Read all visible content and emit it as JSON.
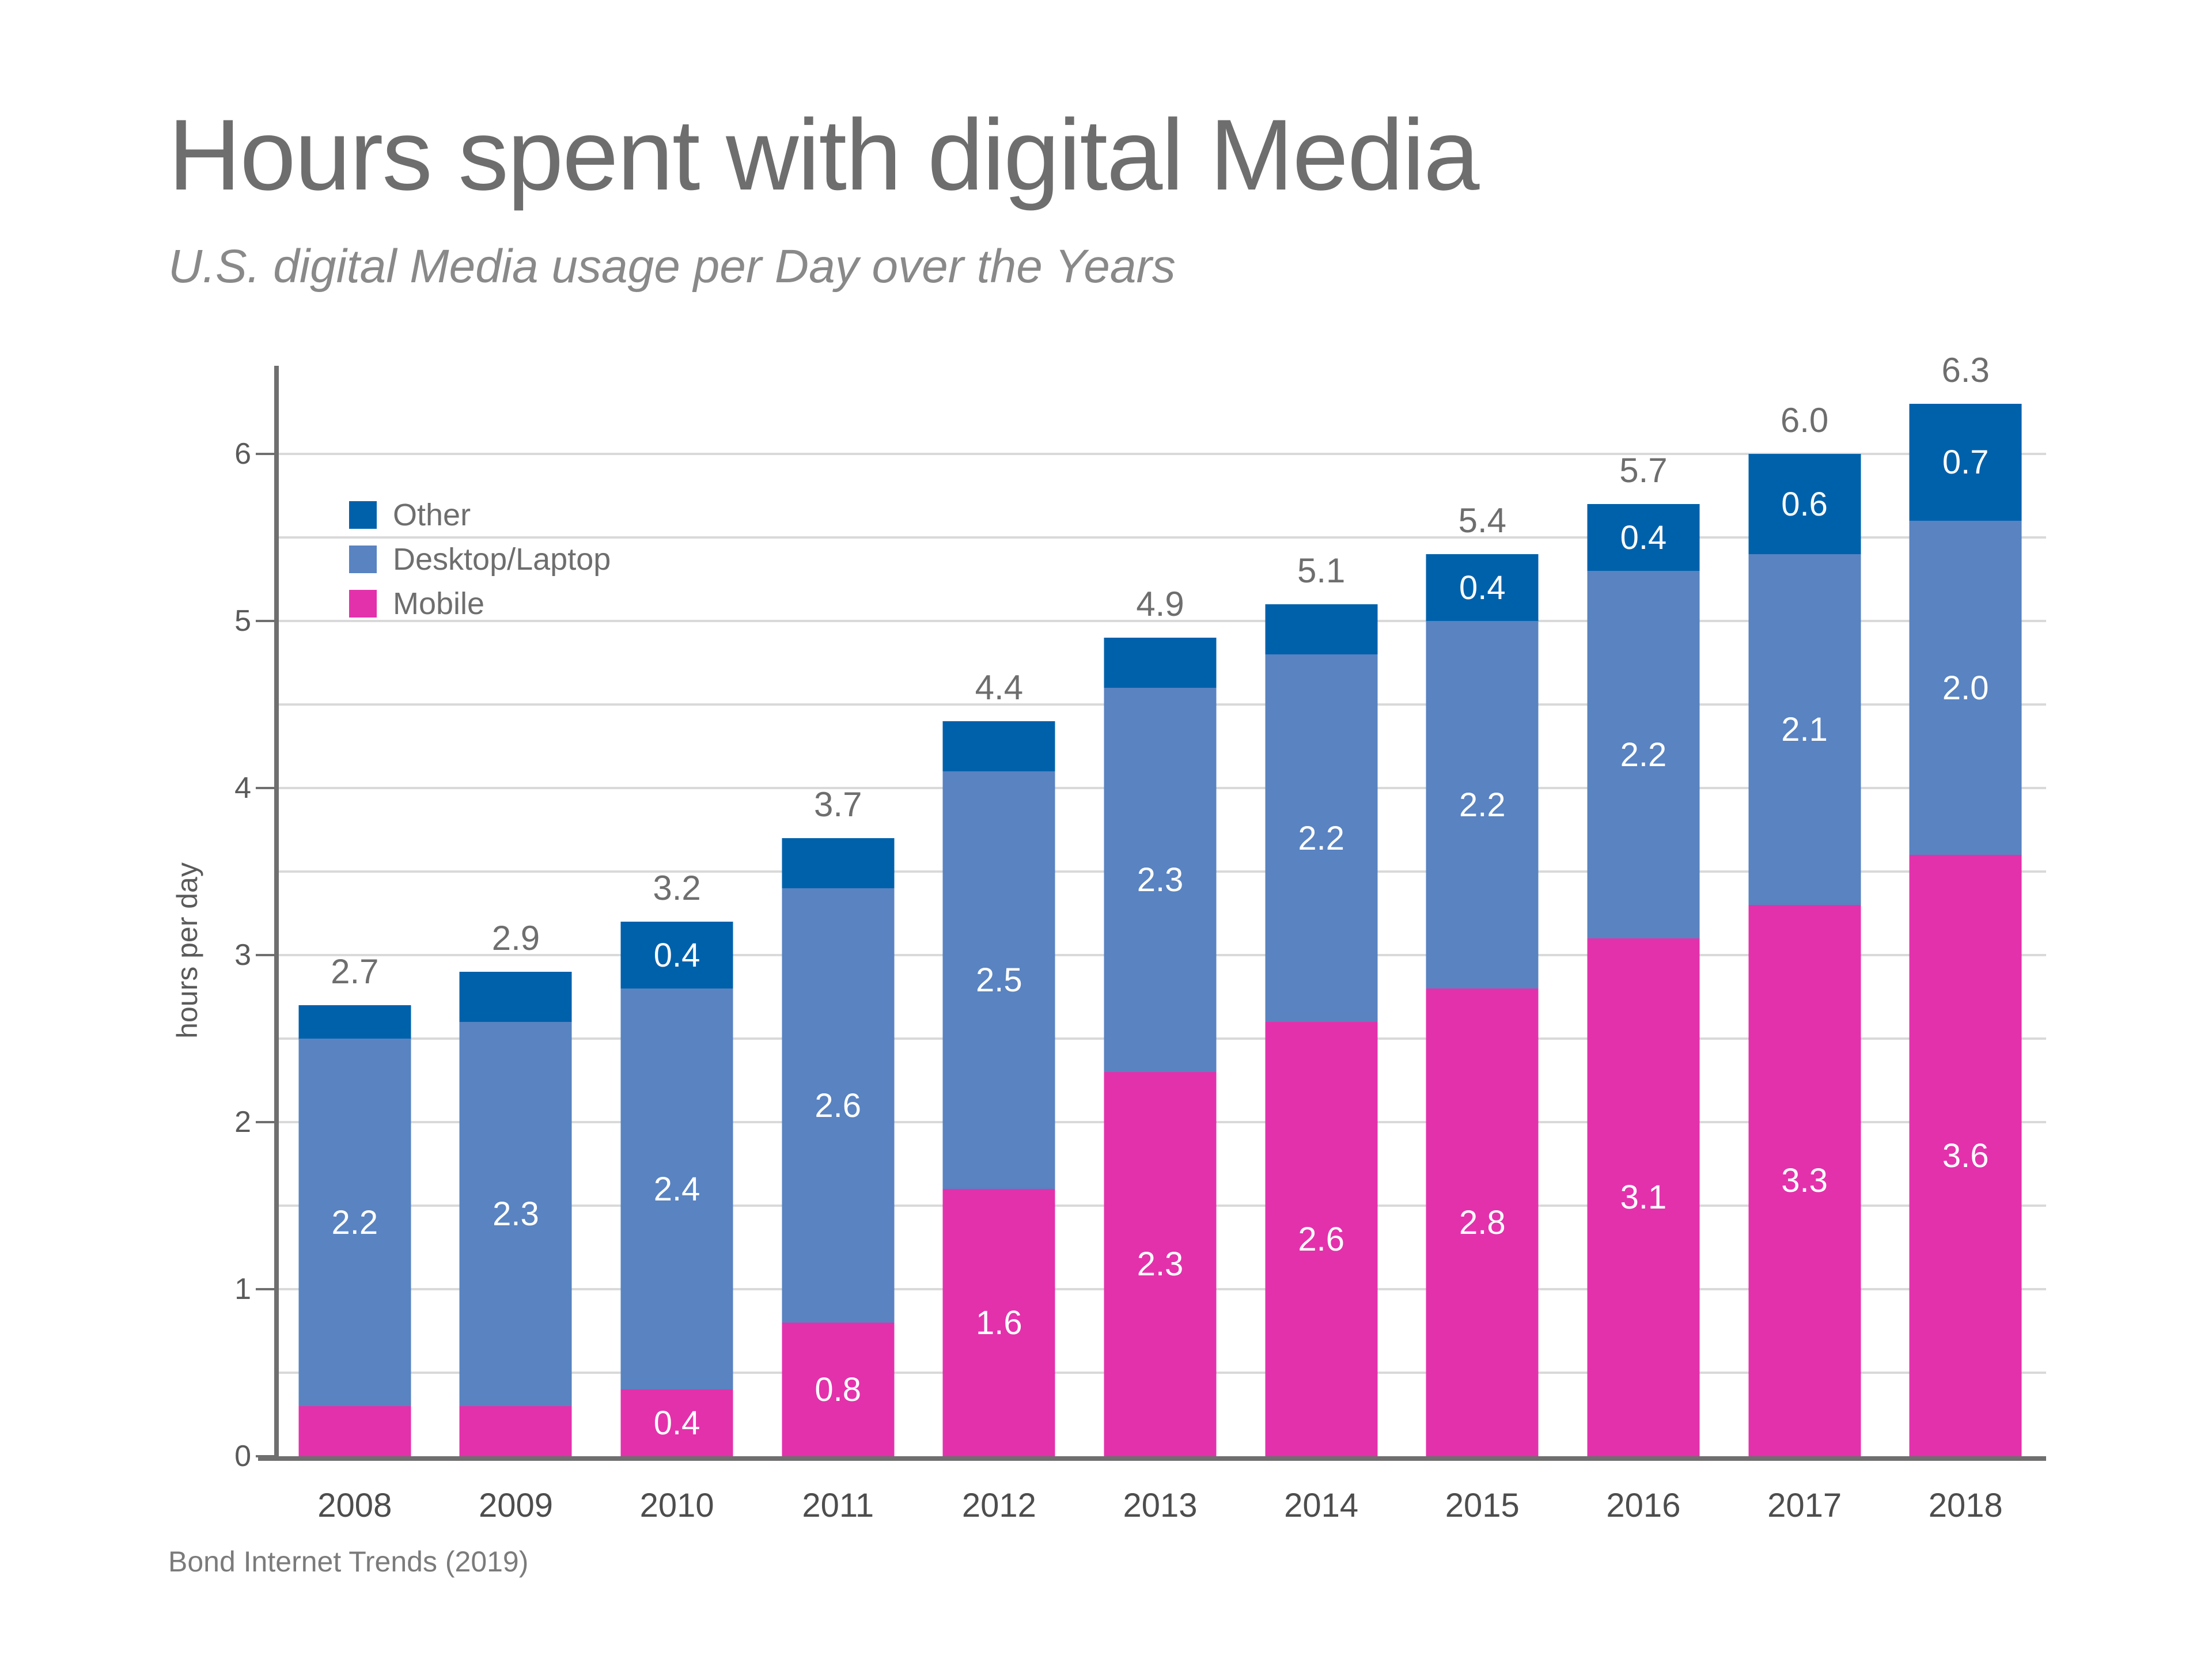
{
  "title": "Hours spent with digital Media",
  "subtitle": "U.S. digital Media usage per Day over the Years",
  "source": "Bond Internet Trends (2019)",
  "y_axis": {
    "label": "hours per day",
    "tick_labels": [
      "0",
      "1",
      "2",
      "3",
      "4",
      "5",
      "6"
    ]
  },
  "legend": {
    "items": [
      {
        "label": "Other",
        "color": "#0061AB"
      },
      {
        "label": "Desktop/Laptop",
        "color": "#5983C1"
      },
      {
        "label": "Mobile",
        "color": "#E331AC"
      }
    ]
  },
  "chart_data": {
    "type": "bar",
    "stacked": true,
    "title": "Hours spent with digital Media",
    "subtitle": "U.S. digital Media usage per Day over the Years",
    "xlabel": "",
    "ylabel": "hours per day",
    "ylim": [
      0,
      6.5
    ],
    "grid": "on",
    "gridline_step": 0.5,
    "gridline_max": 6.0,
    "legend_position": "top-left inside plot",
    "categories": [
      "2008",
      "2009",
      "2010",
      "2011",
      "2012",
      "2013",
      "2014",
      "2015",
      "2016",
      "2017",
      "2018"
    ],
    "series": [
      {
        "name": "Mobile",
        "color": "#E331AC",
        "values": [
          0.3,
          0.3,
          0.4,
          0.8,
          1.6,
          2.3,
          2.6,
          2.8,
          3.1,
          3.3,
          3.6
        ],
        "labels": [
          "",
          "",
          "0.4",
          "0.8",
          "1.6",
          "2.3",
          "2.6",
          "2.8",
          "3.1",
          "3.3",
          "3.6"
        ]
      },
      {
        "name": "Desktop/Laptop",
        "color": "#5983C1",
        "values": [
          2.2,
          2.3,
          2.4,
          2.6,
          2.5,
          2.3,
          2.2,
          2.2,
          2.2,
          2.1,
          2.0
        ],
        "labels": [
          "2.2",
          "2.3",
          "2.4",
          "2.6",
          "2.5",
          "2.3",
          "2.2",
          "2.2",
          "2.2",
          "2.1",
          "2.0"
        ]
      },
      {
        "name": "Other",
        "color": "#0061AB",
        "values": [
          0.2,
          0.3,
          0.4,
          0.3,
          0.3,
          0.3,
          0.3,
          0.4,
          0.4,
          0.6,
          0.7
        ],
        "labels": [
          "",
          "",
          "0.4",
          "",
          "",
          "",
          "",
          "0.4",
          "0.4",
          "0.6",
          "0.7"
        ]
      }
    ],
    "totals": [
      "2.7",
      "2.9",
      "3.2",
      "3.7",
      "4.4",
      "4.9",
      "5.1",
      "5.4",
      "5.7",
      "6.0",
      "6.3"
    ]
  },
  "colors": {
    "axis": "#6F6F6F",
    "gridline": "#D9D9D9",
    "title": "#6E6E6E",
    "subtitle": "#898989",
    "total_label": "#6E6E6E",
    "bar_label": "#FFFFFF",
    "year_label": "#4D4D4D",
    "tick_label": "#5A5A5A",
    "legend_text": "#6E6E6E",
    "source": "#7B7B7B"
  }
}
